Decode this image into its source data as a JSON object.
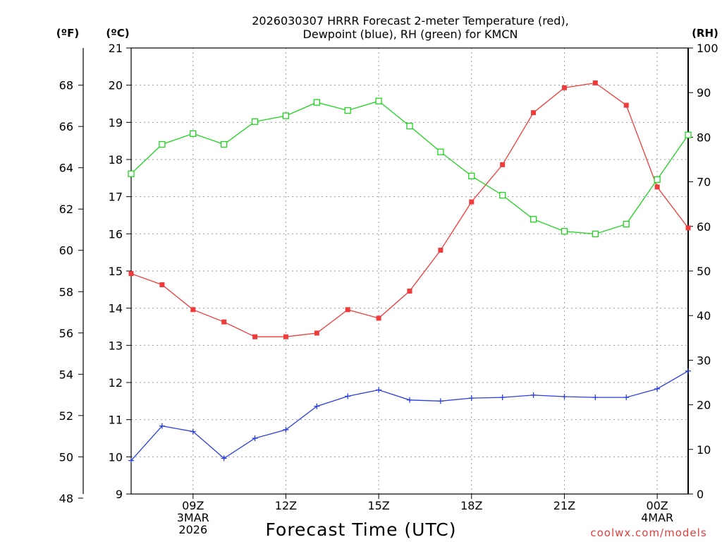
{
  "chart_data": {
    "type": "line",
    "title_line1": "2026030307 HRRR Forecast 2-meter Temperature (red),",
    "title_line2": "Dewpoint (blue), RH (green) for KMCN",
    "left_unit_f": "(ºF)",
    "left_unit_c": "(ºC)",
    "right_unit": "(RH)",
    "xlabel": "Forecast Time (UTC)",
    "credit": "coolwx.com/models",
    "x_ticks": [
      {
        "hour": 2,
        "lines": [
          "09Z",
          "3MAR",
          "2026"
        ]
      },
      {
        "hour": 5,
        "lines": [
          "12Z"
        ]
      },
      {
        "hour": 8,
        "lines": [
          "15Z"
        ]
      },
      {
        "hour": 11,
        "lines": [
          "18Z"
        ]
      },
      {
        "hour": 14,
        "lines": [
          "21Z"
        ]
      },
      {
        "hour": 17,
        "lines": [
          "00Z",
          "4MAR"
        ]
      }
    ],
    "xlim": [
      0,
      18
    ],
    "c_axis": {
      "min": 9,
      "max": 21,
      "ticks": [
        9,
        10,
        11,
        12,
        13,
        14,
        15,
        16,
        17,
        18,
        19,
        20,
        21
      ]
    },
    "f_axis": {
      "ticks": [
        48,
        50,
        52,
        54,
        56,
        58,
        60,
        62,
        64,
        66,
        68
      ]
    },
    "rh_axis": {
      "min": 0,
      "max": 100,
      "ticks": [
        0,
        10,
        20,
        30,
        40,
        50,
        60,
        70,
        80,
        90,
        100
      ]
    },
    "series": [
      {
        "name": "Temperature",
        "color": "#ef3b3b",
        "units": "C",
        "marker": "filled-square",
        "x": [
          0,
          1,
          2,
          3,
          4,
          5,
          6,
          7,
          8,
          9,
          10,
          11,
          12,
          13,
          14,
          15,
          16,
          17,
          18
        ],
        "values": [
          14.93,
          14.63,
          13.96,
          13.63,
          13.23,
          13.23,
          13.33,
          13.96,
          13.73,
          14.46,
          15.56,
          16.86,
          17.86,
          19.26,
          19.93,
          20.06,
          19.46,
          17.26,
          16.16
        ]
      },
      {
        "name": "Dewpoint",
        "color": "#2b3fe0",
        "units": "C",
        "marker": "plus",
        "x": [
          0,
          1,
          2,
          3,
          4,
          5,
          6,
          7,
          8,
          9,
          10,
          11,
          12,
          13,
          14,
          15,
          16,
          17,
          18
        ],
        "values": [
          9.9,
          10.83,
          10.68,
          9.96,
          10.5,
          10.73,
          11.36,
          11.63,
          11.8,
          11.53,
          11.5,
          11.58,
          11.6,
          11.66,
          11.62,
          11.6,
          11.6,
          11.83,
          12.31
        ]
      },
      {
        "name": "RH",
        "color": "#1fd41f",
        "units": "%",
        "marker": "open-square",
        "x": [
          0,
          1,
          2,
          3,
          4,
          5,
          6,
          7,
          8,
          9,
          10,
          11,
          12,
          13,
          14,
          15,
          16,
          17,
          18
        ],
        "values": [
          71.8,
          78.4,
          80.8,
          78.4,
          83.5,
          84.8,
          87.8,
          86.0,
          88.1,
          82.5,
          76.7,
          71.3,
          67.0,
          61.6,
          58.9,
          58.3,
          60.5,
          70.5,
          80.5
        ]
      }
    ]
  }
}
